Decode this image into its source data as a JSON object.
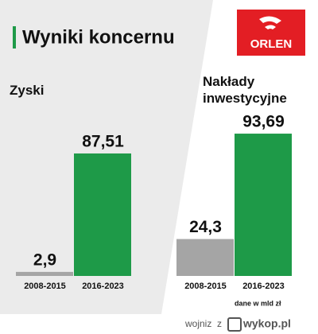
{
  "header": {
    "title": "Wyniki koncernu",
    "logo": "ORLEN"
  },
  "chart_data": [
    {
      "type": "bar",
      "title": "Zyski",
      "categories": [
        "2008-2015",
        "2016-2023"
      ],
      "values": [
        2.9,
        87.51
      ],
      "value_labels": [
        "2,9",
        "87,51"
      ],
      "colors": [
        "#a5a5a5",
        "#1e9a48"
      ],
      "ylim": [
        0,
        100
      ]
    },
    {
      "type": "bar",
      "title": "Nakłady inwestycyjne",
      "categories": [
        "2008-2015",
        "2016-2023"
      ],
      "values": [
        24.3,
        93.69
      ],
      "value_labels": [
        "24,3",
        "93,69"
      ],
      "colors": [
        "#a5a5a5",
        "#1e9a48"
      ],
      "ylim": [
        0,
        100
      ]
    }
  ],
  "note": "dane w mld zł",
  "watermark": {
    "user": "wojniz",
    "by": "z",
    "site": "wykop.pl"
  }
}
